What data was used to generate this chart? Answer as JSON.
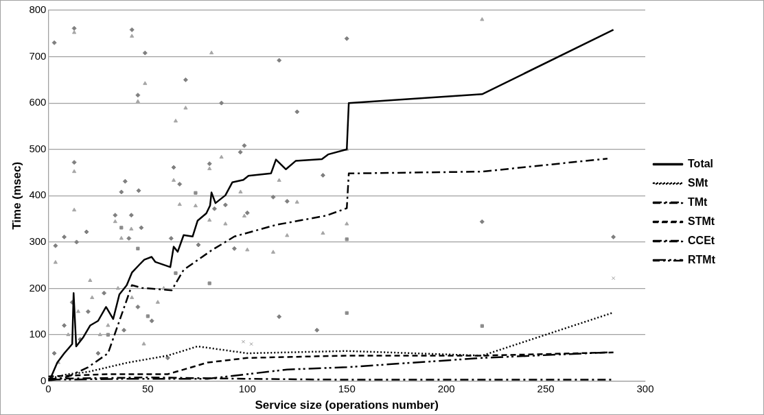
{
  "chart_data": {
    "type": "line",
    "xlabel": "Service size (operations number)",
    "ylabel": "Time (msec)",
    "xlim": [
      0,
      300
    ],
    "xticks": [
      0,
      50,
      100,
      150,
      200,
      250,
      300
    ],
    "ylim": [
      0,
      800
    ],
    "yticks": [
      0,
      100,
      200,
      300,
      400,
      500,
      600,
      700,
      800
    ],
    "grid": "y",
    "legend": "right",
    "series": [
      {
        "type": "scatter",
        "marker": "diamond",
        "color": "#808080",
        "x": [
          3,
          13,
          42,
          48.6,
          116,
          150,
          69,
          45,
          87,
          125,
          13,
          63,
          81,
          96.5,
          98.5,
          138,
          38.6,
          66,
          36.7,
          45.4,
          113,
          120,
          83.5,
          89,
          100,
          33.6,
          41.7,
          8,
          3.6,
          14.2,
          19.2,
          46.7,
          40.5,
          61.7,
          75.4,
          93.5,
          116,
          135,
          3,
          8,
          12,
          16,
          20,
          25,
          28,
          33,
          38,
          45,
          52,
          60,
          218,
          284
        ],
        "values": [
          730,
          761,
          758,
          708,
          692,
          739,
          650,
          617,
          600,
          581,
          472,
          461,
          469,
          494,
          508,
          444,
          431,
          425,
          408,
          411,
          397,
          388,
          372,
          380,
          363,
          358,
          358,
          311,
          292,
          300,
          322,
          331,
          308,
          308,
          294,
          286,
          139,
          110,
          60,
          120,
          170,
          90,
          150,
          60,
          190,
          null,
          110,
          160,
          130,
          50,
          344,
          311
        ]
      },
      {
        "type": "scatter",
        "marker": "triangle",
        "color": "#a6a6a6",
        "x": [
          13,
          42,
          82,
          48.6,
          45,
          69,
          64,
          87,
          13,
          13,
          63,
          81,
          116,
          96.6,
          125,
          66,
          74,
          81,
          89,
          98.5,
          150,
          120,
          138,
          33.6,
          41.7,
          36.7,
          3.6,
          100,
          113,
          21,
          218,
          150,
          5,
          10,
          15,
          22,
          26,
          30,
          35,
          42,
          48,
          55,
          58
        ],
        "values": [
          752,
          744,
          708,
          642,
          603,
          589,
          561,
          483,
          452,
          369,
          433,
          458,
          433,
          408,
          386,
          381,
          378,
          347,
          339,
          356,
          339,
          314,
          319,
          344,
          328,
          308,
          256,
          283,
          278,
          217,
          780,
          500,
          40,
          100,
          150,
          180,
          100,
          120,
          200,
          180,
          80,
          170,
          200
        ]
      },
      {
        "type": "scatter",
        "marker": "square",
        "color": "#8c8c8c",
        "x": [
          74,
          36.7,
          150,
          81,
          45,
          64,
          150,
          218,
          30,
          50
        ],
        "values": [
          406,
          331,
          306,
          211,
          286,
          233,
          147,
          119,
          100,
          140
        ]
      },
      {
        "type": "scatter",
        "marker": "cross",
        "color": "#999999",
        "x": [
          98,
          102,
          284
        ],
        "values": [
          85,
          80,
          222
        ]
      },
      {
        "name": "Total",
        "color": "#000000",
        "line_style": "solid",
        "marker": "none",
        "x": [
          0,
          1.5,
          4.5,
          8,
          12,
          12.7,
          14,
          17.6,
          21,
          25,
          29,
          32.6,
          35.7,
          39.4,
          42,
          45.7,
          48.2,
          51.9,
          53.8,
          61.3,
          63,
          65,
          68,
          72.5,
          75,
          79.4,
          81.3,
          82,
          84,
          89,
          92.5,
          98,
          100.6,
          111.9,
          114.4,
          119.4,
          124.3,
          137.5,
          140.6,
          150,
          151,
          218,
          284
        ],
        "values": [
          0,
          10,
          40,
          60,
          80,
          190,
          75,
          95,
          120,
          130,
          160,
          134,
          187,
          207,
          234,
          251,
          262,
          268,
          257,
          246,
          290,
          279,
          315,
          312,
          346,
          362,
          379,
          407,
          384,
          401,
          429,
          434,
          443,
          448,
          478,
          457,
          475,
          479,
          489,
          500,
          600,
          619,
          758
        ]
      },
      {
        "name": "SMt",
        "color": "#000000",
        "line_style": "dotted",
        "marker": "none",
        "x": [
          0,
          10,
          20,
          30,
          40,
          60,
          75,
          100,
          150,
          218,
          284
        ],
        "values": [
          5,
          15,
          20,
          30,
          40,
          55,
          75,
          60,
          65,
          55,
          148
        ]
      },
      {
        "name": "TMt",
        "color": "#000000",
        "line_style": "dashdot",
        "marker": "none",
        "x": [
          0,
          10,
          20,
          30,
          42,
          47,
          62,
          68,
          82,
          93.5,
          114.4,
          139.6,
          150,
          151,
          218,
          281
        ],
        "values": [
          0,
          10,
          30,
          60,
          207,
          201,
          196,
          240,
          282,
          312,
          337,
          357,
          373,
          448,
          452,
          480
        ]
      },
      {
        "name": "STMt",
        "color": "#000000",
        "line_style": "dashed",
        "marker": "none",
        "x": [
          0,
          30,
          60,
          80,
          100,
          150,
          218,
          284
        ],
        "values": [
          10,
          15,
          15,
          40,
          50,
          55,
          55,
          62
        ]
      },
      {
        "name": "CCEt",
        "color": "#000000",
        "line_style": "dashdot",
        "marker": "none",
        "x": [
          0,
          50,
          100,
          150,
          218,
          284
        ],
        "values": [
          5,
          8,
          5,
          3,
          3,
          3
        ]
      },
      {
        "name": "RTMt",
        "color": "#000000",
        "line_style": "dashdotdot",
        "marker": "none",
        "x": [
          0,
          40,
          80,
          100,
          120,
          150,
          218,
          281
        ],
        "values": [
          3,
          5,
          5,
          15,
          25,
          30,
          50,
          62
        ]
      }
    ]
  }
}
